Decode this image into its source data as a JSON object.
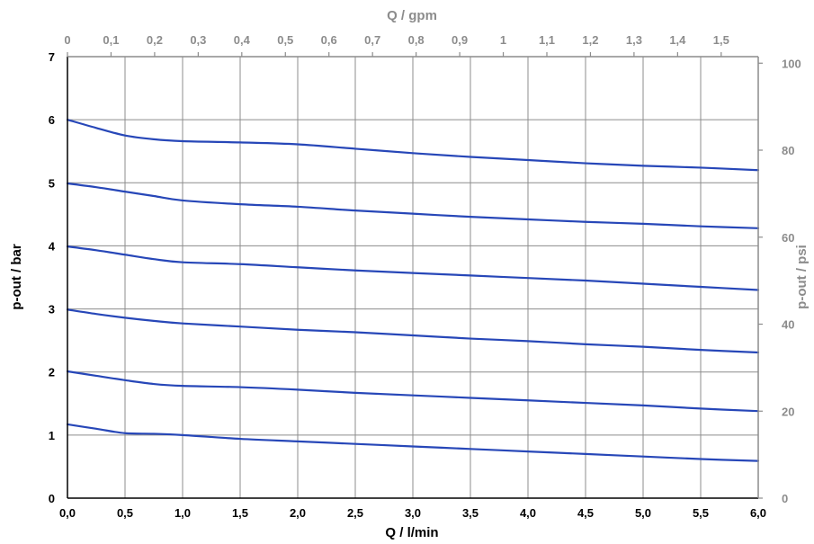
{
  "chart_data": {
    "type": "line",
    "x_axis": {
      "label": "Q / l/min",
      "range": [
        0,
        6
      ],
      "ticks": [
        "0,0",
        "0,5",
        "1,0",
        "1,5",
        "2,0",
        "2,5",
        "3,0",
        "3,5",
        "4,0",
        "4,5",
        "5,0",
        "5,5",
        "6,0"
      ],
      "tick_values": [
        0,
        0.5,
        1,
        1.5,
        2,
        2.5,
        3,
        3.5,
        4,
        4.5,
        5,
        5.5,
        6
      ]
    },
    "x2_axis": {
      "label": "Q / gpm",
      "range": [
        0,
        1.585
      ],
      "ticks": [
        "0",
        "0,1",
        "0,2",
        "0,3",
        "0,4",
        "0,5",
        "0,6",
        "0,7",
        "0,8",
        "0,9",
        "1",
        "1,1",
        "1,2",
        "1,3",
        "1,4",
        "1,5"
      ],
      "tick_values": [
        0,
        0.1,
        0.2,
        0.3,
        0.4,
        0.5,
        0.6,
        0.7,
        0.8,
        0.9,
        1.0,
        1.1,
        1.2,
        1.3,
        1.4,
        1.5
      ]
    },
    "y_axis": {
      "label": "p-out / bar",
      "range": [
        0,
        7
      ],
      "ticks": [
        "0",
        "1",
        "2",
        "3",
        "4",
        "5",
        "6",
        "7"
      ],
      "tick_values": [
        0,
        1,
        2,
        3,
        4,
        5,
        6,
        7
      ]
    },
    "y2_axis": {
      "label": "p-out / psi",
      "range": [
        0,
        101.5
      ],
      "ticks": [
        "0",
        "20",
        "40",
        "60",
        "80",
        "100"
      ],
      "tick_values": [
        0,
        20,
        40,
        60,
        80,
        100
      ]
    },
    "grid": true,
    "series": [
      {
        "x": [
          0,
          0.25,
          0.5,
          0.75,
          1.0,
          1.5,
          2.0,
          2.5,
          3.0,
          3.5,
          4.0,
          4.5,
          5.0,
          5.5,
          6.0
        ],
        "y": [
          1.17,
          1.1,
          1.03,
          1.02,
          1.0,
          0.94,
          0.9,
          0.86,
          0.82,
          0.78,
          0.74,
          0.7,
          0.66,
          0.62,
          0.59
        ]
      },
      {
        "x": [
          0,
          0.25,
          0.5,
          0.75,
          1.0,
          1.5,
          2.0,
          2.5,
          3.0,
          3.5,
          4.0,
          4.5,
          5.0,
          5.5,
          6.0
        ],
        "y": [
          2.01,
          1.94,
          1.87,
          1.81,
          1.78,
          1.76,
          1.72,
          1.67,
          1.63,
          1.59,
          1.55,
          1.51,
          1.47,
          1.42,
          1.38
        ]
      },
      {
        "x": [
          0,
          0.25,
          0.5,
          0.75,
          1.0,
          1.5,
          2.0,
          2.5,
          3.0,
          3.5,
          4.0,
          4.5,
          5.0,
          5.5,
          6.0
        ],
        "y": [
          2.99,
          2.92,
          2.86,
          2.81,
          2.77,
          2.72,
          2.67,
          2.63,
          2.58,
          2.53,
          2.49,
          2.44,
          2.4,
          2.35,
          2.31
        ]
      },
      {
        "x": [
          0,
          0.25,
          0.5,
          0.75,
          1.0,
          1.5,
          2.0,
          2.5,
          3.0,
          3.5,
          4.0,
          4.5,
          5.0,
          5.5,
          6.0
        ],
        "y": [
          3.99,
          3.93,
          3.86,
          3.79,
          3.74,
          3.71,
          3.66,
          3.61,
          3.57,
          3.53,
          3.49,
          3.45,
          3.4,
          3.35,
          3.3
        ]
      },
      {
        "x": [
          0,
          0.25,
          0.5,
          0.75,
          1.0,
          1.5,
          2.0,
          2.5,
          3.0,
          3.5,
          4.0,
          4.5,
          5.0,
          5.5,
          6.0
        ],
        "y": [
          4.99,
          4.93,
          4.86,
          4.79,
          4.72,
          4.66,
          4.62,
          4.56,
          4.51,
          4.46,
          4.42,
          4.38,
          4.35,
          4.31,
          4.28
        ]
      },
      {
        "x": [
          0,
          0.25,
          0.5,
          0.75,
          1.0,
          1.5,
          2.0,
          2.5,
          3.0,
          3.5,
          4.0,
          4.5,
          5.0,
          5.5,
          6.0
        ],
        "y": [
          6.0,
          5.87,
          5.75,
          5.69,
          5.66,
          5.64,
          5.61,
          5.54,
          5.47,
          5.41,
          5.36,
          5.31,
          5.27,
          5.24,
          5.2
        ]
      }
    ],
    "colors": {
      "series": "#2747b8",
      "grid": "#8c8c8c",
      "secondary_text": "#8c8c8c",
      "primary_text": "#000000"
    }
  }
}
